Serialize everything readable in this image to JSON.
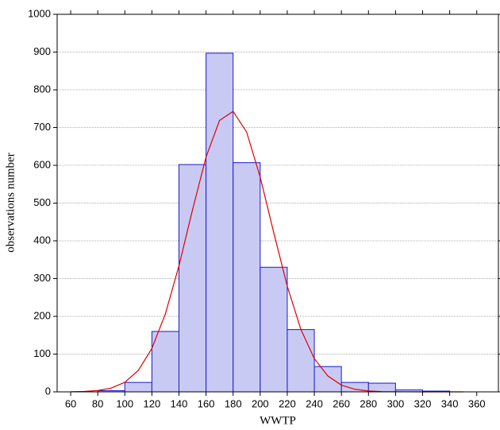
{
  "chart_data": {
    "type": "histogram",
    "x_label": "WWTP",
    "y_label": "observations number",
    "bins": [
      80,
      100,
      120,
      140,
      160,
      180,
      200,
      220,
      240,
      260,
      280,
      300,
      320,
      340
    ],
    "values": [
      3,
      25,
      160,
      602,
      897,
      607,
      330,
      165,
      67,
      25,
      23,
      5,
      2
    ],
    "color": "#c8caf4",
    "edge_color": "#1a1acc",
    "curve": {
      "color": "#e00000",
      "x": [
        60,
        70,
        80,
        90,
        100,
        110,
        120,
        130,
        140,
        150,
        160,
        170,
        180,
        190,
        200,
        210,
        220,
        230,
        240,
        250,
        260,
        270,
        280,
        290,
        300,
        310,
        320,
        330,
        340,
        350
      ],
      "values": [
        0.3,
        1.1,
        3.6,
        10.1,
        25.4,
        57,
        115,
        207,
        334,
        482,
        622,
        719,
        743,
        688,
        569,
        422,
        280,
        166,
        88,
        42,
        17.8,
        6.8,
        2.3,
        0.7,
        0.2,
        0.1,
        0,
        0,
        0,
        0
      ]
    },
    "xlim": [
      50,
      376
    ],
    "ylim": [
      0,
      1000
    ],
    "xticks": [
      60,
      80,
      100,
      120,
      140,
      160,
      180,
      200,
      220,
      240,
      260,
      280,
      300,
      320,
      340,
      360
    ],
    "yticks": [
      0,
      100,
      200,
      300,
      400,
      500,
      600,
      700,
      800,
      900,
      1000
    ],
    "grid": true
  }
}
